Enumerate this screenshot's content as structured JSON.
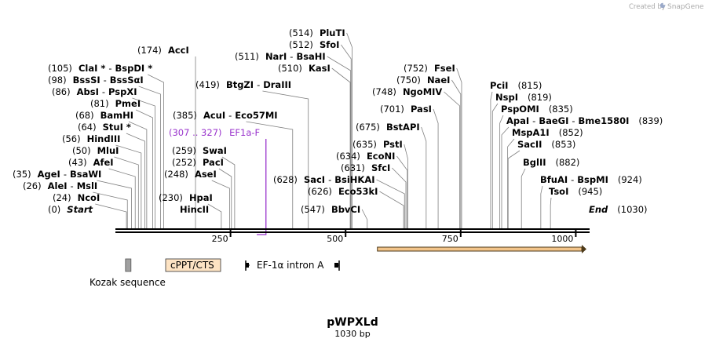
{
  "branding": {
    "created_by": "Created by",
    "app_name": "SnapGene"
  },
  "plasmid": {
    "name": "pWPXLd",
    "length_label": "1030 bp",
    "length": 1030
  },
  "colors": {
    "primer": "#9933cc",
    "orf_fill": "#f2c48a",
    "orf_stroke": "#4d3a1a",
    "feature_box": "#fde3c3",
    "kozak": "#a0a0a0"
  },
  "axis": {
    "ticks": [
      {
        "value": 250,
        "label": "250"
      },
      {
        "value": 500,
        "label": "500"
      },
      {
        "value": 750,
        "label": "750"
      },
      {
        "value": 1000,
        "label": "1000"
      }
    ]
  },
  "sites": [
    {
      "pos": 0,
      "pos_label": "(0)",
      "name": "Start",
      "italic": true
    },
    {
      "pos": 24,
      "pos_label": "(24)",
      "name": "NcoI"
    },
    {
      "pos": 26,
      "pos_label": "(26)",
      "name": "AleI",
      "name2": "MslI"
    },
    {
      "pos": 35,
      "pos_label": "(35)",
      "name": "AgeI",
      "name2": "BsaWI"
    },
    {
      "pos": 43,
      "pos_label": "(43)",
      "name": "AfeI"
    },
    {
      "pos": 50,
      "pos_label": "(50)",
      "name": "MluI"
    },
    {
      "pos": 56,
      "pos_label": "(56)",
      "name": "HindIII"
    },
    {
      "pos": 64,
      "pos_label": "(64)",
      "name": "StuI *"
    },
    {
      "pos": 68,
      "pos_label": "(68)",
      "name": "BamHI"
    },
    {
      "pos": 81,
      "pos_label": "(81)",
      "name": "PmeI"
    },
    {
      "pos": 86,
      "pos_label": "(86)",
      "name": "AbsI",
      "name2": "PspXI"
    },
    {
      "pos": 98,
      "pos_label": "(98)",
      "name": "BssSI",
      "name2": "BssSαI"
    },
    {
      "pos": 105,
      "pos_label": "(105)",
      "name": "ClaI *",
      "name2": "BspDI *"
    },
    {
      "pos": 174,
      "pos_label": "(174)",
      "name": "AccI"
    },
    {
      "pos": 230,
      "pos_label": "(230)",
      "name": "HpaI",
      "name_lower": "HincII"
    },
    {
      "pos": 248,
      "pos_label": "(248)",
      "name": "AseI"
    },
    {
      "pos": 252,
      "pos_label": "(252)",
      "name": "PacI"
    },
    {
      "pos": 259,
      "pos_label": "(259)",
      "name": "SwaI"
    },
    {
      "pos": 385,
      "pos_label": "(385)",
      "name": "AcuI",
      "name2": "Eco57MI"
    },
    {
      "pos": 419,
      "pos_label": "(419)",
      "name": "BtgZI",
      "name2": "DraIII"
    },
    {
      "pos": 510,
      "pos_label": "(510)",
      "name": "KasI"
    },
    {
      "pos": 511,
      "pos_label": "(511)",
      "name": "NarI",
      "name2": "BsaHI"
    },
    {
      "pos": 512,
      "pos_label": "(512)",
      "name": "SfoI"
    },
    {
      "pos": 514,
      "pos_label": "(514)",
      "name": "PluTI"
    },
    {
      "pos": 547,
      "pos_label": "(547)",
      "name": "BbvCI"
    },
    {
      "pos": 626,
      "pos_label": "(626)",
      "name": "Eco53kI"
    },
    {
      "pos": 628,
      "pos_label": "(628)",
      "name": "SacI",
      "name2": "BsiHKAI"
    },
    {
      "pos": 631,
      "pos_label": "(631)",
      "name": "SfcI"
    },
    {
      "pos": 634,
      "pos_label": "(634)",
      "name": "EcoNI"
    },
    {
      "pos": 635,
      "pos_label": "(635)",
      "name": "PstI"
    },
    {
      "pos": 675,
      "pos_label": "(675)",
      "name": "BstAPI"
    },
    {
      "pos": 701,
      "pos_label": "(701)",
      "name": "PasI"
    },
    {
      "pos": 748,
      "pos_label": "(748)",
      "name": "NgoMIV"
    },
    {
      "pos": 750,
      "pos_label": "(750)",
      "name": "NaeI"
    },
    {
      "pos": 752,
      "pos_label": "(752)",
      "name": "FseI"
    },
    {
      "pos": 815,
      "pos_label": "(815)",
      "name": "PciI"
    },
    {
      "pos": 819,
      "pos_label": "(819)",
      "name": "NspI"
    },
    {
      "pos": 835,
      "pos_label": "(835)",
      "name": "PspOMI"
    },
    {
      "pos": 839,
      "pos_label": "(839)",
      "name": "ApaI",
      "name2": "BaeGI",
      "name3": "Bme1580I"
    },
    {
      "pos": 852,
      "pos_label": "(852)",
      "name": "MspA1I"
    },
    {
      "pos": 853,
      "pos_label": "(853)",
      "name": "SacII"
    },
    {
      "pos": 882,
      "pos_label": "(882)",
      "name": "BglII"
    },
    {
      "pos": 924,
      "pos_label": "(924)",
      "name": "BfuAI",
      "name2": "BspMI"
    },
    {
      "pos": 945,
      "pos_label": "(945)",
      "name": "TsoI"
    },
    {
      "pos": 1030,
      "pos_label": "(1030)",
      "name": "End",
      "italic": true
    }
  ],
  "primer": {
    "range_label": "(307 .. 327)",
    "name": "EF1a-F",
    "start": 307,
    "end": 327
  },
  "features": {
    "orf": {
      "start": 535,
      "end": 1030
    },
    "kozak": {
      "label": "Kozak sequence",
      "pos": 27
    },
    "cppt": {
      "label": "cPPT/CTS"
    },
    "intron": {
      "label": "EF-1α intron A"
    }
  }
}
